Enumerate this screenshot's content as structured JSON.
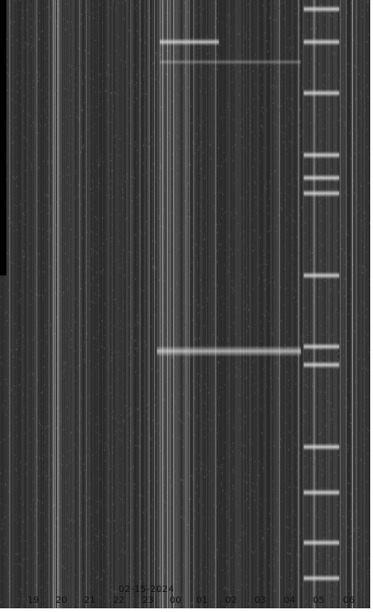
{
  "image": {
    "type": "keogram",
    "date_label": "02-15-2024",
    "hour_labels": [
      "19",
      "20",
      "21",
      "22",
      "23",
      "00",
      "01",
      "02",
      "03",
      "04",
      "05",
      "06"
    ],
    "colors": {
      "background": "#2f2f2f",
      "label_text": "#101010"
    }
  }
}
